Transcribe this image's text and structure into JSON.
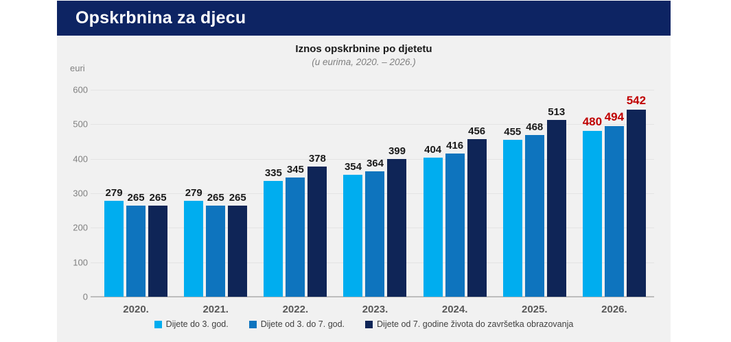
{
  "header": {
    "title": "Opskrbnina za djecu"
  },
  "chart": {
    "title": "Iznos opskrbnine po djetetu",
    "subtitle": "(u eurima, 2020. – 2026.)",
    "unit_label": "euri"
  },
  "colors": {
    "header_bg": "#0D2463",
    "panel_bg": "#F1F1F1",
    "value_label": "#1A1A1A",
    "highlight_value_label": "#C00000"
  },
  "chart_data": {
    "type": "bar",
    "title": "Iznos opskrbnine po djetetu",
    "subtitle": "(u eurima, 2020. – 2026.)",
    "ylabel": "euri",
    "xlabel": "",
    "ylim": [
      0,
      600
    ],
    "ytick_step": 100,
    "grid": true,
    "legend_position": "bottom",
    "value_labels": true,
    "highlighted_category": "2026.",
    "categories": [
      "2020.",
      "2021.",
      "2022.",
      "2023.",
      "2024.",
      "2025.",
      "2026."
    ],
    "series": [
      {
        "name": "Dijete do 3. god.",
        "color": "#00ADEF",
        "values": [
          279,
          279,
          335,
          354,
          404,
          455,
          480
        ]
      },
      {
        "name": "Dijete od 3. do 7. god.",
        "color": "#0E74BE",
        "values": [
          265,
          265,
          345,
          364,
          416,
          468,
          494
        ]
      },
      {
        "name": "Dijete od 7. godine života do završetka obrazovanja",
        "color": "#0F2557",
        "values": [
          265,
          265,
          378,
          399,
          456,
          513,
          542
        ]
      }
    ]
  }
}
